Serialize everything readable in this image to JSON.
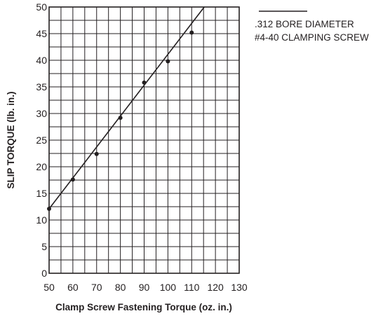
{
  "chart_data": {
    "type": "scatter",
    "xlabel": "Clamp Screw Fastening Torque (oz. in.)",
    "ylabel": "SLIP TORQUE (lb. in.)",
    "xlim": [
      50,
      130
    ],
    "ylim": [
      0,
      50
    ],
    "x_ticks": [
      "50",
      "60",
      "70",
      "80",
      "90",
      "100",
      "110",
      "120",
      "130"
    ],
    "y_ticks": [
      "0",
      "5",
      "10",
      "15",
      "20",
      "25",
      "30",
      "35",
      "40",
      "45",
      "50"
    ],
    "grid": true,
    "legend_position": "top-right",
    "legend": [
      ".312 BORE DIAMETER",
      "#4-40 CLAMPING SCREW"
    ],
    "series": [
      {
        "x": [
          50,
          60,
          70,
          80,
          90,
          100,
          110
        ],
        "y": [
          12.1,
          17.6,
          22.4,
          29.2,
          35.8,
          39.8,
          45.2
        ]
      }
    ],
    "fit_line": {
      "x": [
        50,
        115.3
      ],
      "y": [
        12.1,
        50
      ]
    },
    "colors": {
      "ink": "#231f20",
      "background": "#ffffff"
    }
  }
}
